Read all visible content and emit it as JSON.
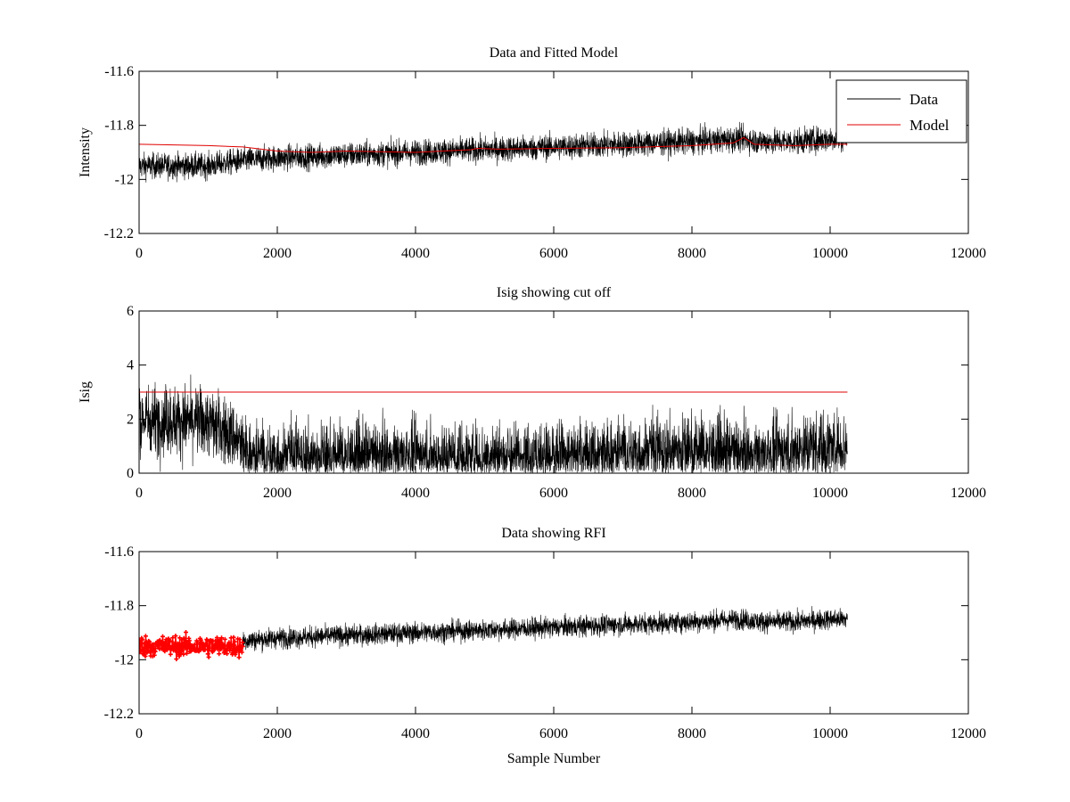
{
  "chart_data": [
    {
      "type": "line",
      "title": "Data and Fitted Model",
      "xlabel": "",
      "ylabel": "Intensity",
      "xlim": [
        0,
        12000
      ],
      "ylim": [
        -12.2,
        -11.6
      ],
      "y_reversed": true,
      "xticks": [
        0,
        2000,
        4000,
        6000,
        8000,
        10000,
        12000
      ],
      "xtick_labels": [
        "0",
        "2000",
        "4000",
        "6000",
        "8000",
        "10000",
        "12000"
      ],
      "yticks": [
        -11.6,
        -11.8,
        -12,
        -12.2
      ],
      "ytick_labels": [
        "-11.6",
        "-11.8",
        "-12",
        "-12.2"
      ],
      "grid": false,
      "legend_position": "top-right",
      "series": [
        {
          "name": "Data",
          "color": "#000000",
          "style": "noisy-line",
          "x": [
            0,
            1000,
            1500,
            2000,
            3000,
            4000,
            5000,
            6000,
            7000,
            8000,
            8700,
            9000,
            9500,
            10000,
            10250
          ],
          "y": [
            -11.95,
            -11.95,
            -11.93,
            -11.92,
            -11.91,
            -11.9,
            -11.89,
            -11.88,
            -11.87,
            -11.86,
            -11.85,
            -11.86,
            -11.86,
            -11.85,
            -11.85
          ],
          "noise_amplitude": 0.055
        },
        {
          "name": "Model",
          "color": "#e00000",
          "style": "line",
          "x": [
            0,
            1000,
            1500,
            2000,
            2500,
            3000,
            4000,
            4800,
            4900,
            5200,
            6000,
            7000,
            8000,
            8600,
            8750,
            8900,
            9500,
            10000,
            10250
          ],
          "y": [
            -11.87,
            -11.875,
            -11.88,
            -11.895,
            -11.9,
            -11.895,
            -11.9,
            -11.89,
            -11.885,
            -11.888,
            -11.885,
            -11.883,
            -11.875,
            -11.865,
            -11.845,
            -11.87,
            -11.875,
            -11.87,
            -11.87
          ]
        }
      ]
    },
    {
      "type": "line",
      "title": "Isig showing cut off",
      "xlabel": "",
      "ylabel": "Isig",
      "xlim": [
        0,
        12000
      ],
      "ylim": [
        0,
        6
      ],
      "y_reversed": false,
      "xticks": [
        0,
        2000,
        4000,
        6000,
        8000,
        10000,
        12000
      ],
      "xtick_labels": [
        "0",
        "2000",
        "4000",
        "6000",
        "8000",
        "10000",
        "12000"
      ],
      "yticks": [
        0,
        2,
        4,
        6
      ],
      "ytick_labels": [
        "0",
        "2",
        "4",
        "6"
      ],
      "grid": false,
      "series": [
        {
          "color": "#000000",
          "style": "noisy-abs",
          "x": [
            0,
            1000,
            1400,
            1600,
            3000,
            6000,
            7500,
            8000,
            9000,
            9700,
            10250
          ],
          "y": [
            2.0,
            1.9,
            1.3,
            0.6,
            0.6,
            0.6,
            0.8,
            0.9,
            0.6,
            1.0,
            1.0
          ],
          "noise_amplitude": 0.9
        },
        {
          "color": "#e00000",
          "style": "line",
          "x": [
            0,
            10250
          ],
          "y": [
            3,
            3
          ]
        }
      ]
    },
    {
      "type": "line",
      "title": "Data showing RFI",
      "xlabel": "Sample Number",
      "ylabel": "",
      "xlim": [
        0,
        12000
      ],
      "ylim": [
        -12.2,
        -11.6
      ],
      "y_reversed": true,
      "xticks": [
        0,
        2000,
        4000,
        6000,
        8000,
        10000,
        12000
      ],
      "xtick_labels": [
        "0",
        "2000",
        "4000",
        "6000",
        "8000",
        "10000",
        "12000"
      ],
      "yticks": [
        -11.6,
        -11.8,
        -12,
        -12.2
      ],
      "ytick_labels": [
        "-11.6",
        "-11.8",
        "-12",
        "-12.2"
      ],
      "grid": false,
      "series": [
        {
          "color": "#000000",
          "style": "noisy-line",
          "x": [
            1500,
            2000,
            3000,
            4000,
            5000,
            6000,
            7000,
            8000,
            8700,
            9000,
            9500,
            10000,
            10250
          ],
          "y": [
            -11.93,
            -11.92,
            -11.91,
            -11.9,
            -11.89,
            -11.88,
            -11.87,
            -11.86,
            -11.85,
            -11.86,
            -11.86,
            -11.85,
            -11.85
          ],
          "noise_amplitude": 0.045
        },
        {
          "color": "#ff0000",
          "style": "noisy-markers",
          "x": [
            0,
            1500
          ],
          "y": [
            -11.95,
            -11.95
          ],
          "noise_amplitude": 0.045
        }
      ]
    }
  ]
}
